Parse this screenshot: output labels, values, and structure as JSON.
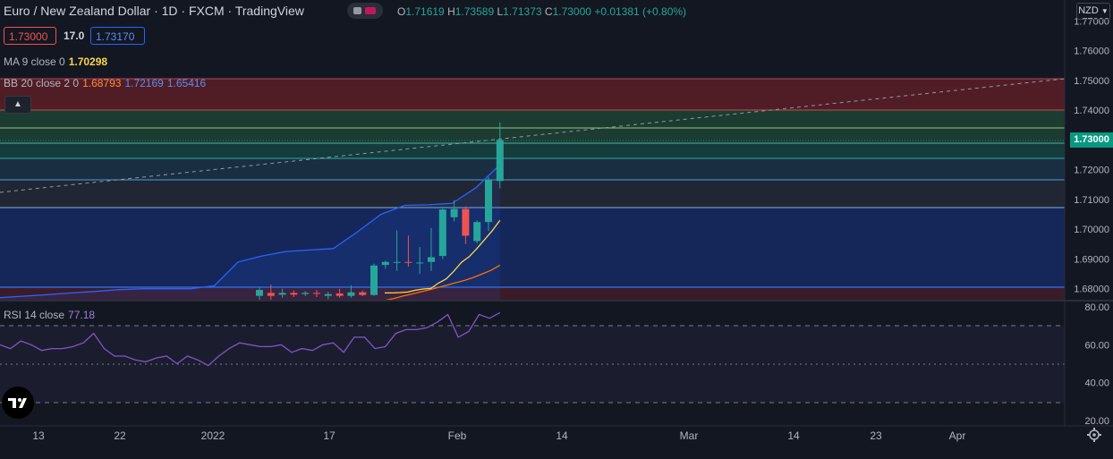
{
  "header": {
    "title": "Euro / New Zealand Dollar · 1D · FXCM · TradingView",
    "ohlc": [
      {
        "k": "O",
        "v": "1.71619"
      },
      {
        "k": "H",
        "v": "1.73589"
      },
      {
        "k": "L",
        "v": "1.71373"
      },
      {
        "k": "C",
        "v": "1.73000"
      },
      {
        "k": "",
        "v": "+0.01381 (+0.80%)"
      }
    ]
  },
  "trade": {
    "sell": "1.73000",
    "spread": "17.0",
    "buy": "1.73170"
  },
  "indicators": {
    "ma": {
      "label": "MA 9 close 0",
      "value": "1.70298"
    },
    "bb": {
      "label": "BB 20 close 2 0",
      "basis": "1.68793",
      "upper": "1.72169",
      "lower": "1.65416"
    },
    "rsi": {
      "label": "RSI 14 close",
      "value": "77.18"
    }
  },
  "axis": {
    "currency": "NZD",
    "price_ticks": [
      "1.77000",
      "1.76000",
      "1.75000",
      "1.74000",
      "1.72000",
      "1.71000",
      "1.70000",
      "1.69000",
      "1.68000"
    ],
    "current_price": "1.73000",
    "rsi_ticks": [
      "80.00",
      "60.00",
      "40.00",
      "20.00"
    ],
    "time_ticks": [
      "13",
      "22",
      "2022",
      "17",
      "Feb",
      "14",
      "Mar",
      "14",
      "23",
      "Apr"
    ]
  },
  "colors": {
    "up": "#26a69a",
    "down": "#ef5350",
    "ma": "#f7d74b",
    "bb_basis": "#ff6d00",
    "bb_band": "#2962ff",
    "rsi": "#7e57c2"
  },
  "chart_data": {
    "type": "candlestick",
    "title": "Euro / New Zealand Dollar · 1D · FXCM",
    "ylim": [
      1.676,
      1.777
    ],
    "candles": [
      {
        "o": 1.6776,
        "h": 1.6804,
        "l": 1.6762,
        "c": 1.6796
      },
      {
        "o": 1.6786,
        "h": 1.6814,
        "l": 1.676,
        "c": 1.6776
      },
      {
        "o": 1.678,
        "h": 1.68,
        "l": 1.677,
        "c": 1.6786
      },
      {
        "o": 1.6786,
        "h": 1.6795,
        "l": 1.6772,
        "c": 1.678
      },
      {
        "o": 1.6782,
        "h": 1.6792,
        "l": 1.6775,
        "c": 1.6786
      },
      {
        "o": 1.6786,
        "h": 1.6796,
        "l": 1.6772,
        "c": 1.6784
      },
      {
        "o": 1.6776,
        "h": 1.679,
        "l": 1.6765,
        "c": 1.6782
      },
      {
        "o": 1.6784,
        "h": 1.68,
        "l": 1.677,
        "c": 1.6776
      },
      {
        "o": 1.6776,
        "h": 1.6812,
        "l": 1.677,
        "c": 1.6788
      },
      {
        "o": 1.6788,
        "h": 1.6794,
        "l": 1.6775,
        "c": 1.6779
      },
      {
        "o": 1.6779,
        "h": 1.6884,
        "l": 1.6776,
        "c": 1.6878
      },
      {
        "o": 1.688,
        "h": 1.6894,
        "l": 1.6867,
        "c": 1.689
      },
      {
        "o": 1.689,
        "h": 1.6996,
        "l": 1.686,
        "c": 1.689
      },
      {
        "o": 1.689,
        "h": 1.6978,
        "l": 1.6874,
        "c": 1.6888
      },
      {
        "o": 1.6888,
        "h": 1.694,
        "l": 1.685,
        "c": 1.6888
      },
      {
        "o": 1.689,
        "h": 1.7004,
        "l": 1.686,
        "c": 1.6906
      },
      {
        "o": 1.691,
        "h": 1.7075,
        "l": 1.69,
        "c": 1.7066
      },
      {
        "o": 1.704,
        "h": 1.7098,
        "l": 1.7026,
        "c": 1.7068
      },
      {
        "o": 1.7068,
        "h": 1.7076,
        "l": 1.695,
        "c": 1.6978
      },
      {
        "o": 1.696,
        "h": 1.703,
        "l": 1.6952,
        "c": 1.7024
      },
      {
        "o": 1.7024,
        "h": 1.7176,
        "l": 1.6994,
        "c": 1.7166
      },
      {
        "o": 1.71619,
        "h": 1.73589,
        "l": 1.71373,
        "c": 1.73
      }
    ],
    "ma": [
      1.6786,
      1.6786,
      1.6787,
      1.6789,
      1.6795,
      1.6799,
      1.6801,
      1.6819,
      1.6833,
      1.6859,
      1.6889,
      1.6908,
      1.6935,
      1.6965,
      1.6995,
      1.703
    ],
    "bb_basis": [
      1.6761,
      1.6767,
      1.6775,
      1.6782,
      1.6789,
      1.6796,
      1.6804,
      1.6812,
      1.682,
      1.6828,
      1.6838,
      1.685,
      1.6862,
      1.6879
    ],
    "bb_upper": [
      1.677,
      1.6775,
      1.678,
      1.6786,
      1.6791,
      1.6797,
      1.68,
      1.68,
      1.68,
      1.681,
      1.689,
      1.691,
      1.6925,
      1.693,
      1.6935,
      1.699,
      1.705,
      1.708,
      1.7082,
      1.7087,
      1.714,
      1.7217
    ],
    "rsi": [
      60,
      58,
      62,
      60,
      57,
      58,
      58,
      59,
      61,
      66,
      58,
      54,
      54,
      52,
      51,
      53,
      54,
      50,
      54,
      52,
      49,
      54,
      58,
      61,
      60,
      59,
      59,
      60,
      56,
      58,
      57,
      60,
      61,
      56,
      64,
      64,
      58,
      59,
      66,
      68,
      68,
      69,
      72,
      76,
      64,
      67,
      76,
      74,
      77
    ]
  }
}
